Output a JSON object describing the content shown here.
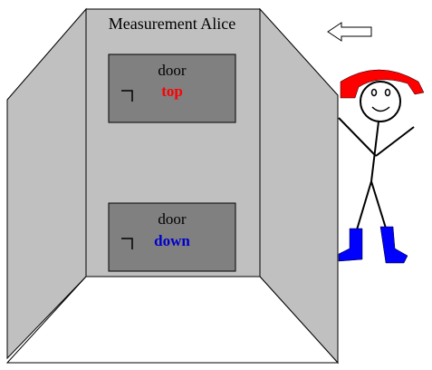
{
  "booth": {
    "title": "Measurement Alice",
    "doors": [
      {
        "word": "door",
        "label": "top",
        "label_color": "#ff0000"
      },
      {
        "word": "door",
        "label": "down",
        "label_color": "#0000cc"
      }
    ]
  },
  "colors": {
    "panel": "#c0c0c0",
    "door_fill": "#808080",
    "hat": "#ff0000",
    "boots": "#0000ff"
  },
  "icons": {
    "direction": "left-arrow-icon",
    "door_corner": "corner-mark-icon",
    "figure": "stick-figure-alice"
  }
}
